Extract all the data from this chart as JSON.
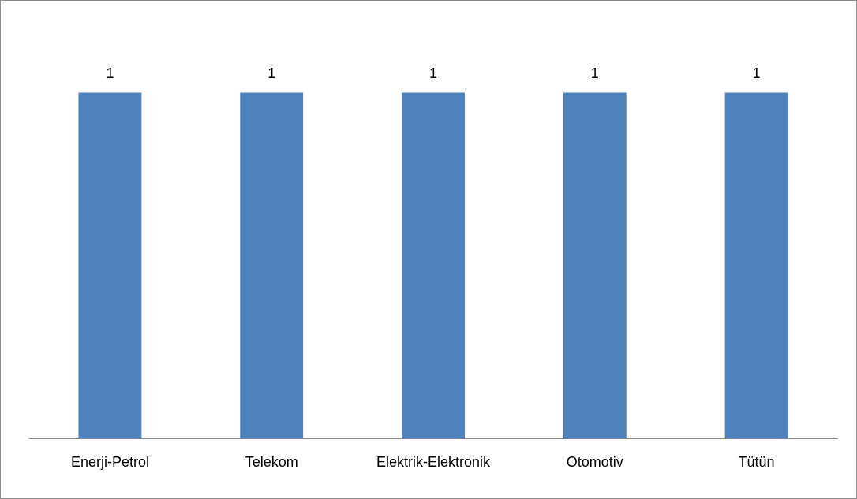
{
  "chart_data": {
    "type": "bar",
    "categories": [
      "Enerji-Petrol",
      "Telekom",
      "Elektrik-Elektronik",
      "Otomotiv",
      "Tütün"
    ],
    "values": [
      1,
      1,
      1,
      1,
      1
    ],
    "color": "#4f81bd",
    "data_labels": true,
    "grid": false,
    "legend": false
  }
}
